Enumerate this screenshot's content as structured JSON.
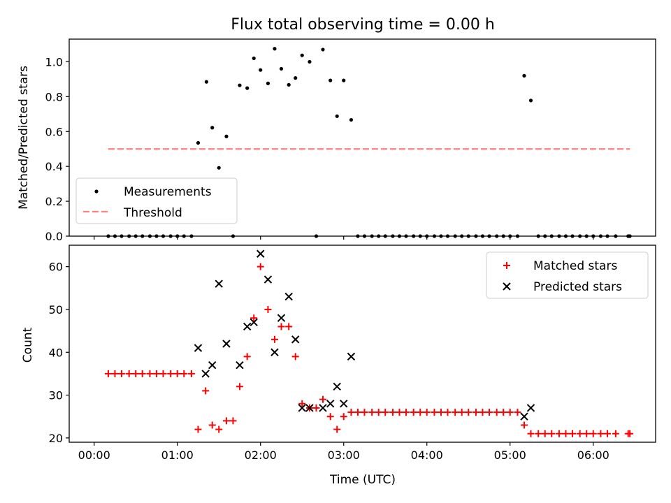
{
  "chart_data": [
    {
      "id": "top",
      "type": "scatter",
      "title": "Flux total observing time = 0.00 h",
      "xlabel": "",
      "ylabel": "Matched/Predicted stars",
      "xlim": [
        -0.3,
        6.75
      ],
      "ylim": [
        0,
        1.13
      ],
      "yticks": [
        0.0,
        0.2,
        0.4,
        0.6,
        0.8,
        1.0
      ],
      "ytick_labels": [
        "0.0",
        "0.2",
        "0.4",
        "0.6",
        "0.8",
        "1.0"
      ],
      "xticks": [
        0,
        1,
        2,
        3,
        4,
        5,
        6
      ],
      "show_xtick_labels": false,
      "grid": false,
      "legend": {
        "position": "bottom-left",
        "entries": [
          "Measurements",
          "Threshold"
        ]
      },
      "series": [
        {
          "name": "Measurements",
          "marker": "dot",
          "color": "#000000",
          "points": [
            [
              0.17,
              0.0
            ],
            [
              0.25,
              0.0
            ],
            [
              0.33,
              0.0
            ],
            [
              0.42,
              0.0
            ],
            [
              0.5,
              0.0
            ],
            [
              0.58,
              0.0
            ],
            [
              0.67,
              0.0
            ],
            [
              0.75,
              0.0
            ],
            [
              0.83,
              0.0
            ],
            [
              0.92,
              0.0
            ],
            [
              1.0,
              0.0
            ],
            [
              1.08,
              0.0
            ],
            [
              1.17,
              0.0
            ],
            [
              1.25,
              0.535
            ],
            [
              1.35,
              0.885
            ],
            [
              1.42,
              0.622
            ],
            [
              1.5,
              0.392
            ],
            [
              1.59,
              0.572
            ],
            [
              1.67,
              0.0
            ],
            [
              1.75,
              0.865
            ],
            [
              1.84,
              0.849
            ],
            [
              1.92,
              1.02
            ],
            [
              2.0,
              0.953
            ],
            [
              2.09,
              0.876
            ],
            [
              2.17,
              1.075
            ],
            [
              2.25,
              0.96
            ],
            [
              2.34,
              0.868
            ],
            [
              2.42,
              0.907
            ],
            [
              2.5,
              1.037
            ],
            [
              2.59,
              1.0
            ],
            [
              2.67,
              0.0
            ],
            [
              2.75,
              1.07
            ],
            [
              2.84,
              0.893
            ],
            [
              2.92,
              0.688
            ],
            [
              3.0,
              0.893
            ],
            [
              3.09,
              0.667
            ],
            [
              3.17,
              0.0
            ],
            [
              3.25,
              0.0
            ],
            [
              3.34,
              0.0
            ],
            [
              3.42,
              0.0
            ],
            [
              3.5,
              0.0
            ],
            [
              3.59,
              0.0
            ],
            [
              3.67,
              0.0
            ],
            [
              3.75,
              0.0
            ],
            [
              3.84,
              0.0
            ],
            [
              3.92,
              0.0
            ],
            [
              4.0,
              0.0
            ],
            [
              4.09,
              0.0
            ],
            [
              4.17,
              0.0
            ],
            [
              4.25,
              0.0
            ],
            [
              4.34,
              0.0
            ],
            [
              4.42,
              0.0
            ],
            [
              4.5,
              0.0
            ],
            [
              4.59,
              0.0
            ],
            [
              4.67,
              0.0
            ],
            [
              4.75,
              0.0
            ],
            [
              4.84,
              0.0
            ],
            [
              4.92,
              0.0
            ],
            [
              5.0,
              0.0
            ],
            [
              5.09,
              0.0
            ],
            [
              5.17,
              0.92
            ],
            [
              5.25,
              0.778
            ],
            [
              5.34,
              0.0
            ],
            [
              5.42,
              0.0
            ],
            [
              5.5,
              0.0
            ],
            [
              5.59,
              0.0
            ],
            [
              5.67,
              0.0
            ],
            [
              5.75,
              0.0
            ],
            [
              5.84,
              0.0
            ],
            [
              5.92,
              0.0
            ],
            [
              6.0,
              0.0
            ],
            [
              6.09,
              0.0
            ],
            [
              6.17,
              0.0
            ],
            [
              6.27,
              0.0
            ],
            [
              6.42,
              0.0
            ],
            [
              6.44,
              0.0
            ]
          ]
        },
        {
          "name": "Threshold",
          "type": "line",
          "style": "dashed",
          "color": "#ff7f7f",
          "points": [
            [
              0.17,
              0.5
            ],
            [
              6.44,
              0.5
            ]
          ]
        }
      ]
    },
    {
      "id": "bottom",
      "type": "scatter",
      "title": "",
      "xlabel": "Time (UTC)",
      "ylabel": "Count",
      "xlim": [
        -0.3,
        6.75
      ],
      "ylim": [
        19,
        65
      ],
      "yticks": [
        20,
        30,
        40,
        50,
        60
      ],
      "ytick_labels": [
        "20",
        "30",
        "40",
        "50",
        "60"
      ],
      "xticks": [
        0,
        1,
        2,
        3,
        4,
        5,
        6
      ],
      "xtick_labels": [
        "00:00",
        "01:00",
        "02:00",
        "03:00",
        "04:00",
        "05:00",
        "06:00"
      ],
      "grid": false,
      "legend": {
        "position": "top-right",
        "entries": [
          "Matched stars",
          "Predicted stars"
        ]
      },
      "series": [
        {
          "name": "Matched stars",
          "marker": "plus",
          "color": "#ff0000",
          "points": [
            [
              0.17,
              35
            ],
            [
              0.25,
              35
            ],
            [
              0.33,
              35
            ],
            [
              0.42,
              35
            ],
            [
              0.5,
              35
            ],
            [
              0.58,
              35
            ],
            [
              0.67,
              35
            ],
            [
              0.75,
              35
            ],
            [
              0.83,
              35
            ],
            [
              0.92,
              35
            ],
            [
              1.0,
              35
            ],
            [
              1.08,
              35
            ],
            [
              1.17,
              35
            ],
            [
              1.25,
              22
            ],
            [
              1.34,
              31
            ],
            [
              1.42,
              23
            ],
            [
              1.5,
              22
            ],
            [
              1.59,
              24
            ],
            [
              1.67,
              24
            ],
            [
              1.75,
              32
            ],
            [
              1.84,
              39
            ],
            [
              1.92,
              48
            ],
            [
              2.0,
              60
            ],
            [
              2.09,
              50
            ],
            [
              2.17,
              43
            ],
            [
              2.25,
              46
            ],
            [
              2.34,
              46
            ],
            [
              2.42,
              39
            ],
            [
              2.5,
              28
            ],
            [
              2.59,
              27
            ],
            [
              2.67,
              27
            ],
            [
              2.75,
              29
            ],
            [
              2.84,
              25
            ],
            [
              2.92,
              22
            ],
            [
              3.0,
              25
            ],
            [
              3.09,
              26
            ],
            [
              3.17,
              26
            ],
            [
              3.25,
              26
            ],
            [
              3.34,
              26
            ],
            [
              3.42,
              26
            ],
            [
              3.5,
              26
            ],
            [
              3.59,
              26
            ],
            [
              3.67,
              26
            ],
            [
              3.75,
              26
            ],
            [
              3.84,
              26
            ],
            [
              3.92,
              26
            ],
            [
              4.0,
              26
            ],
            [
              4.09,
              26
            ],
            [
              4.17,
              26
            ],
            [
              4.25,
              26
            ],
            [
              4.34,
              26
            ],
            [
              4.42,
              26
            ],
            [
              4.5,
              26
            ],
            [
              4.59,
              26
            ],
            [
              4.67,
              26
            ],
            [
              4.75,
              26
            ],
            [
              4.84,
              26
            ],
            [
              4.92,
              26
            ],
            [
              5.0,
              26
            ],
            [
              5.09,
              26
            ],
            [
              5.17,
              23
            ],
            [
              5.25,
              21
            ],
            [
              5.34,
              21
            ],
            [
              5.42,
              21
            ],
            [
              5.5,
              21
            ],
            [
              5.59,
              21
            ],
            [
              5.67,
              21
            ],
            [
              5.75,
              21
            ],
            [
              5.84,
              21
            ],
            [
              5.92,
              21
            ],
            [
              6.0,
              21
            ],
            [
              6.09,
              21
            ],
            [
              6.17,
              21
            ],
            [
              6.27,
              21
            ],
            [
              6.42,
              21
            ],
            [
              6.44,
              21
            ]
          ]
        },
        {
          "name": "Predicted stars",
          "marker": "x",
          "color": "#000000",
          "points": [
            [
              1.25,
              41
            ],
            [
              1.34,
              35
            ],
            [
              1.42,
              37
            ],
            [
              1.5,
              56
            ],
            [
              1.59,
              42
            ],
            [
              1.75,
              37
            ],
            [
              1.84,
              46
            ],
            [
              1.92,
              47
            ],
            [
              2.0,
              63
            ],
            [
              2.09,
              57
            ],
            [
              2.17,
              40
            ],
            [
              2.25,
              48
            ],
            [
              2.34,
              53
            ],
            [
              2.42,
              43
            ],
            [
              2.5,
              27
            ],
            [
              2.59,
              27
            ],
            [
              2.75,
              27
            ],
            [
              2.84,
              28
            ],
            [
              2.92,
              32
            ],
            [
              3.0,
              28
            ],
            [
              3.09,
              39
            ],
            [
              5.17,
              25
            ],
            [
              5.25,
              27
            ]
          ]
        }
      ]
    }
  ]
}
